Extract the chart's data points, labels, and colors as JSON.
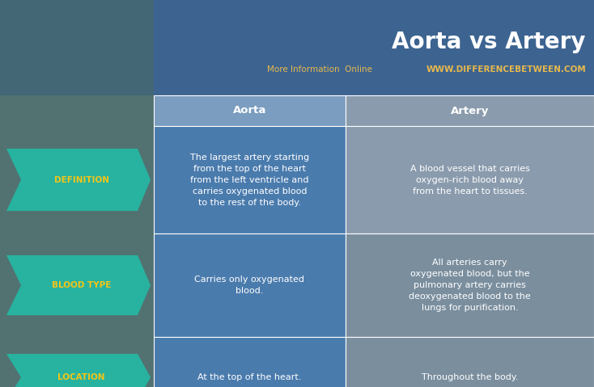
{
  "title": "Aorta vs Artery",
  "title_color": "#FFFFFF",
  "subtitle_prefix": "More Information  Online",
  "subtitle_prefix_color": "#E8B84B",
  "subtitle_url": "WWW.DIFFERENCEBETWEEN.COM",
  "subtitle_url_color": "#E8B84B",
  "col1_header": "Aorta",
  "col2_header": "Artery",
  "header_col1_bg": "#7B9DC0",
  "header_col2_bg": "#8A9BAD",
  "top_bg": "#3D6491",
  "bg_color": "#5B7B8C",
  "row_label_bg": "#27B3A0",
  "row_label_text_color": "#F5C518",
  "cell_col1_bg": "#4A7BAD",
  "cell_col2_bg_odd": "#8A9BAD",
  "cell_col2_bg_even": "#7A8E9E",
  "cell_text_color": "#FFFFFF",
  "rows": [
    {
      "label": "DEFINITION",
      "col1": "The largest artery starting\nfrom the top of the heart\nfrom the left ventricle and\ncarries oxygenated blood\nto the rest of the body.",
      "col2": "A blood vessel that carries\noxygen-rich blood away\nfrom the heart to tissues."
    },
    {
      "label": "BLOOD TYPE",
      "col1": "Carries only oxygenated\nblood.",
      "col2": "All arteries carry\noxygenated blood, but the\npulmonary artery carries\ndeoxygenated blood to the\nlungs for purification."
    },
    {
      "label": "LOCATION",
      "col1": "At the top of the heart.",
      "col2": "Throughout the body."
    }
  ]
}
